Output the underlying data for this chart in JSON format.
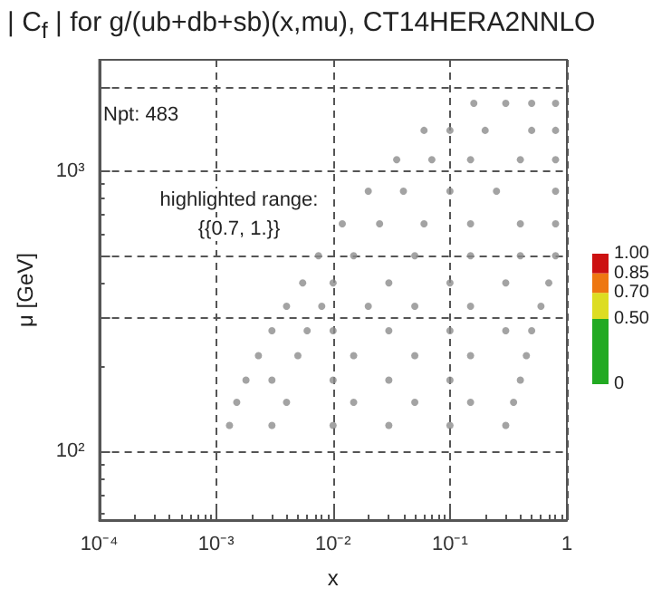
{
  "chart_data": {
    "type": "scatter",
    "title": "| C$_{f}$ | for  g/(ub+db+sb)(x,mu), CT14HERA2NNLO",
    "xlabel": "x",
    "ylabel": "μ [GeV]",
    "clabel": null,
    "annotations": [
      "Npt: 483",
      "highlighted range:",
      "{{0.7, 1.}}"
    ],
    "log": "xy",
    "grid": true,
    "marker": "circle",
    "xlim": [
      0.0001,
      1
    ],
    "xticks": [
      {
        "value": 0.0001,
        "label": "10⁻⁴"
      },
      {
        "value": 0.001,
        "label": "10⁻³"
      },
      {
        "value": 0.01,
        "label": "10⁻²"
      },
      {
        "value": 0.1,
        "label": "10⁻¹"
      },
      1
    ],
    "ylim": [
      57,
      2500
    ],
    "yticks": [
      {
        "value": 100,
        "label": "10²"
      },
      {
        "value": 300,
        "label": null
      },
      {
        "value": 500,
        "label": null
      },
      {
        "value": 1000,
        "label": "10³"
      },
      {
        "value": 2000,
        "label": null
      }
    ],
    "clim": [
      0,
      1
    ],
    "cticks": [
      {
        "value": 0,
        "label": "0"
      },
      {
        "value": 0.5,
        "label": "0.50"
      },
      {
        "value": 0.7,
        "label": "0.70"
      },
      {
        "value": 0.85,
        "label": "0.85"
      },
      {
        "value": 1,
        "label": "1.00"
      }
    ],
    "series": [
      {
        "color": "#8c8c8c",
        "x": [
          0.0013,
          0.003,
          0.01,
          0.03,
          0.1,
          0.3,
          0.0015,
          0.004,
          0.015,
          0.05,
          0.15,
          0.35,
          0.0018,
          0.003,
          0.01,
          0.03,
          0.1,
          0.4,
          0.0023,
          0.005,
          0.015,
          0.05,
          0.15,
          0.45,
          0.003,
          0.006,
          0.01,
          0.03,
          0.1,
          0.3,
          0.5,
          0.004,
          0.008,
          0.02,
          0.05,
          0.15,
          0.6,
          0.0055,
          0.01,
          0.03,
          0.1,
          0.3,
          0.7,
          0.0075,
          0.015,
          0.05,
          0.15,
          0.4,
          0.8,
          0.012,
          0.025,
          0.06,
          0.15,
          0.4,
          0.8,
          0.02,
          0.04,
          0.1,
          0.25,
          0.8,
          0.035,
          0.07,
          0.15,
          0.4,
          0.8,
          0.06,
          0.1,
          0.2,
          0.5,
          0.8,
          0.16,
          0.3,
          0.5,
          0.8
        ],
        "values": [
          124,
          124,
          124,
          124,
          124,
          124,
          150,
          150,
          150,
          150,
          150,
          150,
          180,
          180,
          180,
          180,
          180,
          180,
          220,
          220,
          220,
          220,
          220,
          220,
          270,
          270,
          270,
          270,
          270,
          270,
          270,
          330,
          330,
          330,
          330,
          330,
          330,
          400,
          400,
          400,
          400,
          400,
          400,
          500,
          500,
          500,
          500,
          500,
          500,
          650,
          650,
          650,
          650,
          650,
          650,
          850,
          850,
          850,
          850,
          850,
          1100,
          1100,
          1100,
          1100,
          1100,
          1400,
          1400,
          1400,
          1400,
          1400,
          1750,
          1750,
          1750,
          1750
        ]
      }
    ]
  }
}
